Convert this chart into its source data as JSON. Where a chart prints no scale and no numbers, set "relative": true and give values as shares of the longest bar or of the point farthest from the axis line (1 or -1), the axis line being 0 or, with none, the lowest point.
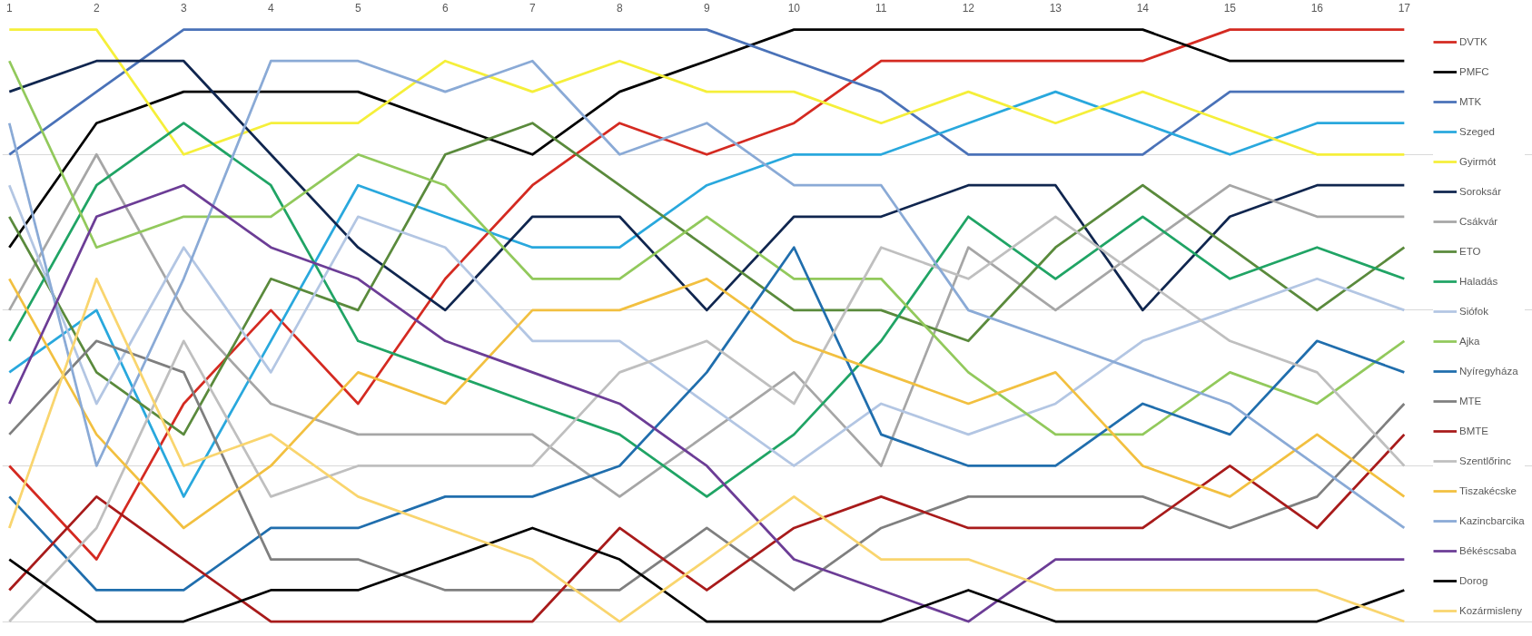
{
  "chart_data": {
    "type": "line",
    "relative": true,
    "grid": "y",
    "legend": "right",
    "categories": [
      "1",
      "2",
      "3",
      "4",
      "5",
      "6",
      "7",
      "8",
      "9",
      "10",
      "11",
      "12",
      "13",
      "14",
      "15",
      "16",
      "17"
    ],
    "series": [
      {
        "name": "DVTK",
        "color": "#d42a21",
        "values": [
          0.263,
          0.105,
          0.368,
          0.526,
          0.368,
          0.579,
          0.737,
          0.842,
          0.789,
          0.842,
          0.947,
          0.947,
          0.947,
          0.947,
          1,
          1,
          1
        ]
      },
      {
        "name": "PMFC",
        "color": "#000000",
        "values": [
          0.632,
          0.842,
          0.895,
          0.895,
          0.895,
          0.842,
          0.789,
          0.895,
          0.947,
          1,
          1,
          1,
          1,
          1,
          0.947,
          0.947,
          0.947
        ]
      },
      {
        "name": "MTK",
        "color": "#4a72b8",
        "values": [
          0.789,
          0.895,
          1,
          1,
          1,
          1,
          1,
          1,
          1,
          0.947,
          0.895,
          0.789,
          0.789,
          0.789,
          0.895,
          0.895,
          0.895
        ]
      },
      {
        "name": "Szeged",
        "color": "#29a8dd",
        "values": [
          0.421,
          0.526,
          0.211,
          0.474,
          0.737,
          0.684,
          0.632,
          0.632,
          0.737,
          0.789,
          0.789,
          0.842,
          0.895,
          0.842,
          0.789,
          0.842,
          0.842
        ]
      },
      {
        "name": "Gyirmót",
        "color": "#f5ef3a",
        "values": [
          1,
          1,
          0.789,
          0.842,
          0.842,
          0.947,
          0.895,
          0.947,
          0.895,
          0.895,
          0.842,
          0.895,
          0.842,
          0.895,
          0.842,
          0.789,
          0.789
        ]
      },
      {
        "name": "Soroksár",
        "color": "#10264f",
        "values": [
          0.895,
          0.947,
          0.947,
          0.789,
          0.632,
          0.526,
          0.684,
          0.684,
          0.526,
          0.684,
          0.684,
          0.737,
          0.737,
          0.526,
          0.684,
          0.737,
          0.737
        ]
      },
      {
        "name": "Csákvár",
        "color": "#a6a6a6",
        "values": [
          0.526,
          0.789,
          0.526,
          0.368,
          0.316,
          0.316,
          0.316,
          0.211,
          0.316,
          0.421,
          0.263,
          0.632,
          0.526,
          0.632,
          0.737,
          0.684,
          0.684
        ]
      },
      {
        "name": "ETO",
        "color": "#5a8a3c",
        "values": [
          0.684,
          0.421,
          0.316,
          0.579,
          0.526,
          0.789,
          0.842,
          0.737,
          0.632,
          0.526,
          0.526,
          0.474,
          0.632,
          0.737,
          0.632,
          0.526,
          0.632
        ]
      },
      {
        "name": "Haladás",
        "color": "#20a465",
        "values": [
          0.474,
          0.737,
          0.842,
          0.737,
          0.474,
          0.421,
          0.368,
          0.316,
          0.211,
          0.316,
          0.474,
          0.684,
          0.579,
          0.684,
          0.579,
          0.632,
          0.579
        ]
      },
      {
        "name": "Siófok",
        "color": "#b3c6e3",
        "values": [
          0.737,
          0.368,
          0.632,
          0.421,
          0.684,
          0.632,
          0.474,
          0.474,
          0.368,
          0.263,
          0.368,
          0.316,
          0.368,
          0.474,
          0.526,
          0.579,
          0.526
        ]
      },
      {
        "name": "Ajka",
        "color": "#92c95c",
        "values": [
          0.947,
          0.632,
          0.684,
          0.684,
          0.789,
          0.737,
          0.579,
          0.579,
          0.684,
          0.579,
          0.579,
          0.421,
          0.316,
          0.316,
          0.421,
          0.368,
          0.474
        ]
      },
      {
        "name": "Nyíregyháza",
        "color": "#206ead",
        "values": [
          0.211,
          0.053,
          0.053,
          0.158,
          0.158,
          0.211,
          0.211,
          0.263,
          0.421,
          0.632,
          0.316,
          0.263,
          0.263,
          0.368,
          0.316,
          0.474,
          0.421
        ]
      },
      {
        "name": "MTE",
        "color": "#7f7f7f",
        "values": [
          0.316,
          0.474,
          0.421,
          0.105,
          0.105,
          0.053,
          0.053,
          0.053,
          0.158,
          0.053,
          0.158,
          0.211,
          0.211,
          0.211,
          0.158,
          0.211,
          0.368
        ]
      },
      {
        "name": "BMTE",
        "color": "#a81b1b",
        "values": [
          0.053,
          0.211,
          0.105,
          0,
          0,
          0,
          0,
          0.158,
          0.053,
          0.158,
          0.211,
          0.158,
          0.158,
          0.158,
          0.263,
          0.158,
          0.316
        ]
      },
      {
        "name": "Szentlőrinc",
        "color": "#bfbfbf",
        "values": [
          0,
          0.158,
          0.474,
          0.211,
          0.263,
          0.263,
          0.263,
          0.421,
          0.474,
          0.368,
          0.632,
          0.579,
          0.684,
          0.579,
          0.474,
          0.421,
          0.263
        ]
      },
      {
        "name": "Tiszakécske",
        "color": "#f2c040",
        "values": [
          0.579,
          0.316,
          0.158,
          0.263,
          0.421,
          0.368,
          0.526,
          0.526,
          0.579,
          0.474,
          0.421,
          0.368,
          0.421,
          0.263,
          0.211,
          0.316,
          0.211
        ]
      },
      {
        "name": "Kazincbarcika",
        "color": "#8aaad6",
        "values": [
          0.842,
          0.263,
          0.579,
          0.947,
          0.947,
          0.895,
          0.947,
          0.789,
          0.842,
          0.737,
          0.737,
          0.526,
          0.474,
          0.421,
          0.368,
          0.263,
          0.158
        ]
      },
      {
        "name": "Békéscsaba",
        "color": "#6c3d96",
        "values": [
          0.368,
          0.684,
          0.737,
          0.632,
          0.579,
          0.474,
          0.421,
          0.368,
          0.263,
          0.105,
          0.053,
          0,
          0.105,
          0.105,
          0.105,
          0.105,
          0.105
        ]
      },
      {
        "name": "Dorog",
        "color": "#000000",
        "values": [
          0.105,
          0,
          0,
          0.053,
          0.053,
          0.105,
          0.158,
          0.105,
          0,
          0,
          0,
          0.053,
          0,
          0,
          0,
          0,
          0.053
        ]
      },
      {
        "name": "Kozármisleny",
        "color": "#f9d56e",
        "values": [
          0.158,
          0.579,
          0.263,
          0.316,
          0.211,
          0.158,
          0.105,
          0,
          0.105,
          0.211,
          0.105,
          0.105,
          0.053,
          0.053,
          0.053,
          0.053,
          0
        ]
      }
    ]
  }
}
